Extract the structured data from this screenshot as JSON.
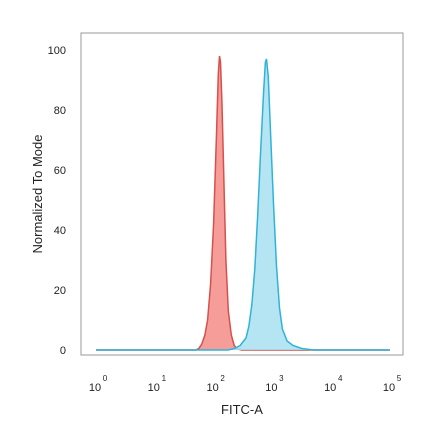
{
  "chart_data": {
    "type": "area",
    "title": "",
    "xlabel": "FITC-A",
    "ylabel": "Normalized To Mode",
    "x_scale": "log",
    "xlim": [
      1,
      100000
    ],
    "ylim": [
      0,
      100
    ],
    "grid": false,
    "legend": "none",
    "x_ticks": [
      {
        "base": "10",
        "exp": "0",
        "value": 1
      },
      {
        "base": "10",
        "exp": "1",
        "value": 10
      },
      {
        "base": "10",
        "exp": "2",
        "value": 100
      },
      {
        "base": "10",
        "exp": "3",
        "value": 1000
      },
      {
        "base": "10",
        "exp": "4",
        "value": 10000
      },
      {
        "base": "10",
        "exp": "5",
        "value": 100000
      }
    ],
    "y_ticks": [
      "0",
      "20",
      "40",
      "60",
      "80",
      "100"
    ],
    "series": [
      {
        "fill": "#f48c88",
        "stroke": "#d6504c",
        "points": [
          [
            1,
            0
          ],
          [
            50,
            0
          ],
          [
            56,
            0.5
          ],
          [
            63,
            2
          ],
          [
            71,
            5
          ],
          [
            79,
            10
          ],
          [
            89,
            22
          ],
          [
            100,
            42
          ],
          [
            112,
            72
          ],
          [
            120,
            92
          ],
          [
            126,
            98
          ],
          [
            131,
            96
          ],
          [
            139,
            82
          ],
          [
            150,
            55
          ],
          [
            162,
            30
          ],
          [
            178,
            13
          ],
          [
            200,
            5
          ],
          [
            224,
            1.5
          ],
          [
            251,
            0.4
          ],
          [
            300,
            0
          ],
          [
            100000,
            0
          ]
        ]
      },
      {
        "fill": "#a8e0f0",
        "stroke": "#2fb3d6",
        "points": [
          [
            1,
            0
          ],
          [
            178,
            0
          ],
          [
            224,
            0.5
          ],
          [
            282,
            1.5
          ],
          [
            355,
            4
          ],
          [
            398,
            8
          ],
          [
            447,
            15
          ],
          [
            501,
            27
          ],
          [
            562,
            45
          ],
          [
            631,
            66
          ],
          [
            708,
            86
          ],
          [
            759,
            96
          ],
          [
            794,
            97
          ],
          [
            851,
            91
          ],
          [
            933,
            72
          ],
          [
            1047,
            48
          ],
          [
            1175,
            28
          ],
          [
            1318,
            14
          ],
          [
            1479,
            7
          ],
          [
            1778,
            3
          ],
          [
            2239,
            1.5
          ],
          [
            3162,
            0.5
          ],
          [
            5012,
            0
          ],
          [
            100000,
            0
          ]
        ]
      }
    ]
  }
}
